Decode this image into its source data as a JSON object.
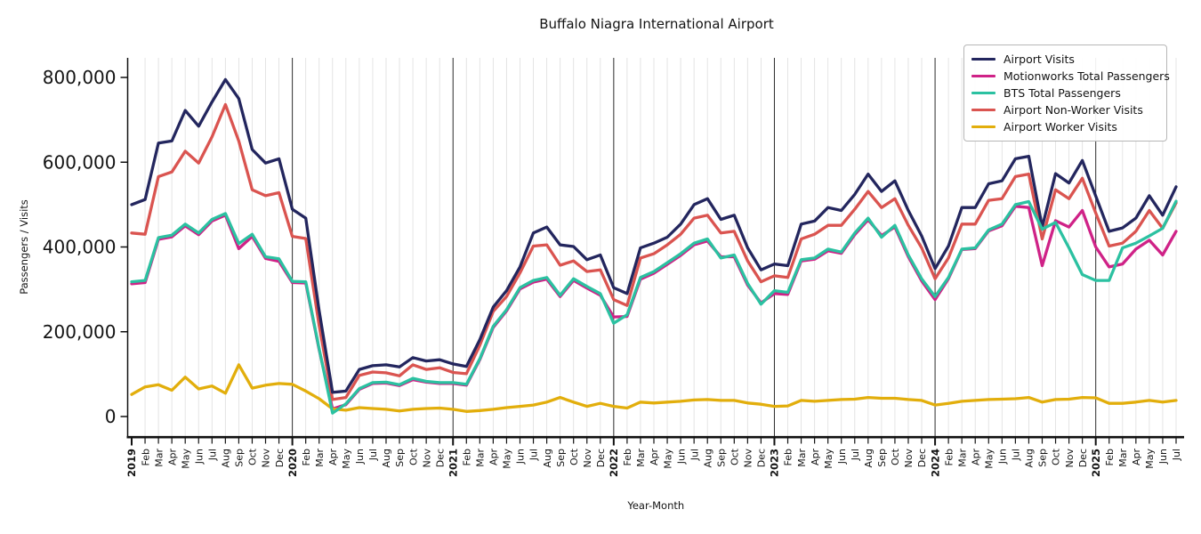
{
  "title": "Buffalo Niagra International Airport",
  "chart_data": {
    "type": "line",
    "title": "Buffalo Niagra International Airport",
    "xlabel": "Year-Month",
    "ylabel": "Passengers / Visits",
    "y_ticks": [
      0,
      200000,
      400000,
      600000,
      800000
    ],
    "y_tick_labels": [
      "0",
      "200,000",
      "400,000",
      "600,000",
      "800,000"
    ],
    "ylim": [
      -45000,
      845000
    ],
    "grid": "vertical-monthly, dark line at each January",
    "legend_position": "upper-right",
    "x_tick_labels": [
      "2019",
      "Feb",
      "Mar",
      "Apr",
      "May",
      "Jun",
      "Jul",
      "Aug",
      "Sep",
      "Oct",
      "Nov",
      "Dec",
      "2020",
      "Feb",
      "Mar",
      "Apr",
      "May",
      "Jun",
      "Jul",
      "Aug",
      "Sep",
      "Oct",
      "Nov",
      "Dec",
      "2021",
      "Feb",
      "Mar",
      "Apr",
      "May",
      "Jun",
      "Jul",
      "Aug",
      "Sep",
      "Oct",
      "Nov",
      "Dec",
      "2022",
      "Feb",
      "Mar",
      "Apr",
      "May",
      "Jun",
      "Jul",
      "Aug",
      "Sep",
      "Oct",
      "Nov",
      "Dec",
      "2023",
      "Feb",
      "Mar",
      "Apr",
      "May",
      "Jun",
      "Jul",
      "Aug",
      "Sep",
      "Oct",
      "Nov",
      "Dec",
      "2024",
      "Feb",
      "Mar",
      "Apr",
      "May",
      "Jun",
      "Jul",
      "Aug",
      "Sep",
      "Oct",
      "Nov",
      "Dec",
      "2025",
      "Feb",
      "Mar",
      "Apr",
      "May",
      "Jun",
      "Jul"
    ],
    "year_start_indices": [
      0,
      12,
      24,
      36,
      48,
      60,
      72
    ],
    "draw_order_indices": [
      1,
      4,
      3,
      0,
      2
    ],
    "series": [
      {
        "name": "Airport Visits",
        "color": "#23265e",
        "values": [
          500000,
          512000,
          645000,
          650000,
          722000,
          685000,
          742000,
          795000,
          750000,
          630000,
          598000,
          608000,
          489000,
          468000,
          250000,
          57000,
          60000,
          111000,
          120000,
          122000,
          117000,
          139000,
          131000,
          134000,
          124000,
          118000,
          181000,
          258000,
          297000,
          353000,
          433000,
          447000,
          405000,
          401000,
          370000,
          381000,
          304000,
          290000,
          398000,
          409000,
          423000,
          454000,
          500000,
          514000,
          465000,
          475000,
          398000,
          346000,
          360000,
          356000,
          454000,
          461000,
          493000,
          486000,
          524000,
          572000,
          531000,
          556000,
          486000,
          426000,
          349000,
          402000,
          493000,
          493000,
          549000,
          556000,
          608000,
          614000,
          447000,
          573000,
          551000,
          604000,
          520000,
          437000,
          445000,
          468000,
          521000,
          475000,
          542000
        ]
      },
      {
        "name": "Motionworks Total Passengers",
        "color": "#cf2287",
        "values": [
          313000,
          316000,
          418000,
          424000,
          450000,
          429000,
          461000,
          475000,
          396000,
          425000,
          373000,
          366000,
          316000,
          315000,
          158000,
          18000,
          28000,
          64000,
          78000,
          79000,
          73000,
          87000,
          81000,
          78000,
          78000,
          74000,
          134000,
          210000,
          249000,
          301000,
          317000,
          324000,
          283000,
          321000,
          303000,
          286000,
          235000,
          236000,
          324000,
          338000,
          359000,
          380000,
          405000,
          414000,
          377000,
          377000,
          310000,
          268000,
          290000,
          288000,
          367000,
          371000,
          391000,
          385000,
          429000,
          464000,
          427000,
          447000,
          377000,
          320000,
          276000,
          325000,
          394000,
          396000,
          438000,
          450000,
          496000,
          493000,
          356000,
          462000,
          447000,
          486000,
          400000,
          353000,
          360000,
          395000,
          416000,
          381000,
          437000
        ]
      },
      {
        "name": "BTS Total Passengers",
        "color": "#2bc1a1",
        "values": [
          318000,
          321000,
          422000,
          428000,
          454000,
          433000,
          465000,
          479000,
          408000,
          430000,
          377000,
          372000,
          319000,
          318000,
          160000,
          8000,
          30000,
          66000,
          80000,
          81000,
          75000,
          90000,
          83000,
          80000,
          80000,
          76000,
          136000,
          213000,
          252000,
          304000,
          321000,
          328000,
          286000,
          325000,
          307000,
          290000,
          220000,
          240000,
          328000,
          342000,
          363000,
          384000,
          409000,
          419000,
          374000,
          381000,
          314000,
          265000,
          297000,
          293000,
          370000,
          374000,
          395000,
          388000,
          433000,
          468000,
          423000,
          451000,
          381000,
          325000,
          283000,
          328000,
          395000,
          398000,
          440000,
          454000,
          500000,
          507000,
          442000,
          458000,
          398000,
          335000,
          321000,
          321000,
          398000,
          409000,
          426000,
          444000,
          508000
        ]
      },
      {
        "name": "Airport Non-Worker Visits",
        "color": "#da5450",
        "values": [
          433000,
          430000,
          566000,
          577000,
          626000,
          598000,
          660000,
          736000,
          650000,
          535000,
          521000,
          528000,
          425000,
          420000,
          215000,
          40000,
          45000,
          97000,
          105000,
          103000,
          96000,
          122000,
          111000,
          115000,
          104000,
          101000,
          168000,
          248000,
          283000,
          339000,
          402000,
          405000,
          357000,
          367000,
          342000,
          346000,
          276000,
          262000,
          374000,
          384000,
          405000,
          430000,
          468000,
          475000,
          433000,
          437000,
          367000,
          318000,
          332000,
          328000,
          419000,
          430000,
          451000,
          451000,
          489000,
          531000,
          493000,
          514000,
          451000,
          398000,
          325000,
          374000,
          454000,
          454000,
          510000,
          514000,
          566000,
          572000,
          419000,
          535000,
          514000,
          562000,
          480000,
          402000,
          409000,
          437000,
          486000,
          444000,
          504000
        ]
      },
      {
        "name": "Airport Worker Visits",
        "color": "#e2ae0c",
        "values": [
          52000,
          70000,
          75000,
          62000,
          93000,
          65000,
          72000,
          55000,
          122000,
          67000,
          74000,
          78000,
          76000,
          60000,
          42000,
          18000,
          15000,
          21000,
          19000,
          17000,
          13000,
          17000,
          19000,
          20000,
          17000,
          12000,
          14000,
          17000,
          21000,
          24000,
          27000,
          34000,
          45000,
          34000,
          24000,
          31000,
          24000,
          20000,
          34000,
          32000,
          34000,
          36000,
          39000,
          40000,
          38000,
          38000,
          32000,
          29000,
          24000,
          25000,
          38000,
          36000,
          38000,
          40000,
          41000,
          45000,
          43000,
          43000,
          40000,
          38000,
          27000,
          31000,
          36000,
          38000,
          40000,
          41000,
          42000,
          45000,
          34000,
          40000,
          41000,
          45000,
          44000,
          31000,
          31000,
          34000,
          38000,
          34000,
          38000
        ]
      }
    ]
  }
}
